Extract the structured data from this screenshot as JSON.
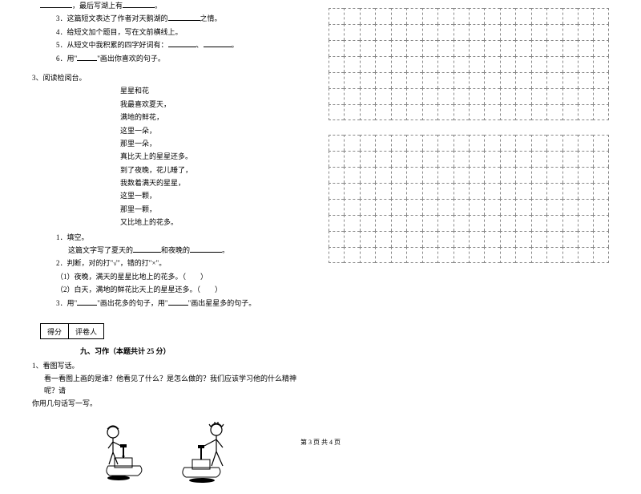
{
  "leftColumn": {
    "topLines": [
      {
        "pre": "",
        "mid": "，最后写湖上有",
        "tail": "。"
      },
      {
        "idx": "3．",
        "text": "这篇短文表达了作者对天鹅湖的",
        "tail": "之情。"
      },
      {
        "idx": "4．",
        "text": "给短文加个题目，写在文前横线上。"
      },
      {
        "idx": "5．",
        "text": "从短文中我积累的四字好词有：",
        "tail1": "、",
        "tail2": "。"
      },
      {
        "idx": "6．",
        "text": "用\"",
        "text2": "\"画出你喜欢的句子。"
      }
    ],
    "readingTitle": "3、阅读检阅台。",
    "poemTitle": "星星和花",
    "poemLines": [
      "我最喜欢夏天，",
      "满地的鲜花，",
      "这里一朵，",
      "那里一朵，",
      "真比天上的星星还多。",
      "到了夜晚，花儿睡了，",
      "我数着满天的星星，",
      "这里一颗，",
      "那里一颗，",
      "又比地上的花多。"
    ],
    "questions": {
      "q1": "1．填空。",
      "q1sub": "这篇文字写了夏天的",
      "q1sub2": "和夜晚的",
      "q1tail": "。",
      "q2": "2．判断，对的打\"√\"，错的打\"×\"。",
      "q2a": "（1）夜晚，满天的星星比地上的花多。（　　）",
      "q2b": "（2）白天，满地的鲜花比天上的星星还多。（　　）",
      "q3a": "3．用\"",
      "q3b": "\"画出花多的句子，用\"",
      "q3c": "\"画出星星多的句子。"
    },
    "scoreLabels": {
      "score": "得分",
      "reviewer": "评卷人"
    },
    "sectionNine": "九、习作（本题共计 25 分）",
    "writing": {
      "title": "1、看图写话。",
      "body1": "看一看图上画的是谁？他看见了什么？是怎么做的？我们应该学习他的什么精神呢？请",
      "body2": "你用几句话写一写。"
    }
  },
  "grid": {
    "cols": 18,
    "rows1": 7,
    "rows2": 8
  },
  "footer": "第 3 页  共 4 页",
  "colors": {
    "text": "#000000",
    "gridBorder": "#888888",
    "bg": "#ffffff"
  }
}
